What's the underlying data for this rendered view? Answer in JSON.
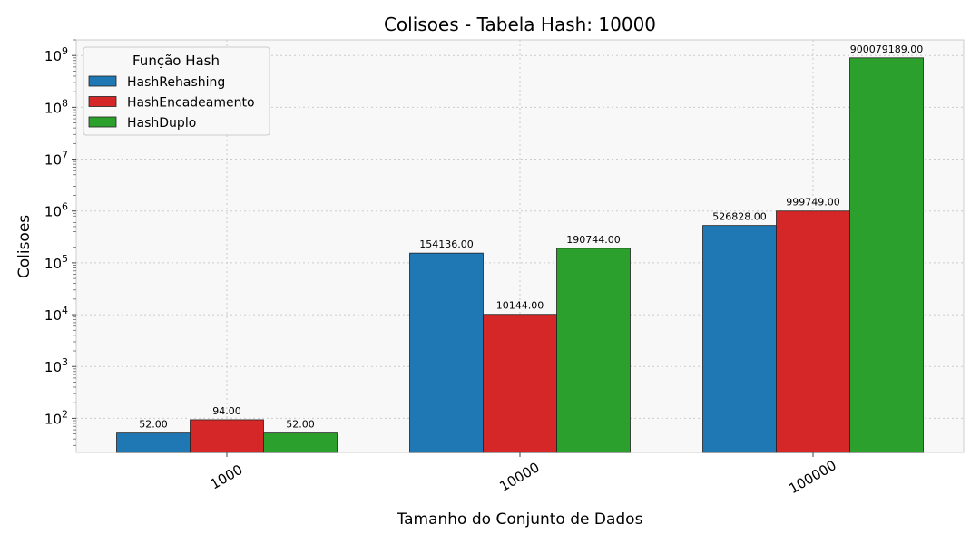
{
  "chart_data": {
    "type": "bar",
    "title": "Colisoes - Tabela Hash: 10000",
    "xlabel": "Tamanho do Conjunto de Dados",
    "ylabel": "Colisoes",
    "yscale": "log",
    "ylim": [
      22,
      2000000000
    ],
    "grid": true,
    "legend_title": "Função Hash",
    "legend_position": "top-left",
    "categories": [
      "1000",
      "10000",
      "100000"
    ],
    "series": [
      {
        "name": "HashRehashing",
        "color": "#1f77b4",
        "values": [
          52,
          154136,
          526828
        ],
        "labels": [
          "52.00",
          "154136.00",
          "526828.00"
        ]
      },
      {
        "name": "HashEncadeamento",
        "color": "#d62728",
        "values": [
          94,
          10144,
          999749
        ],
        "labels": [
          "94.00",
          "10144.00",
          "999749.00"
        ]
      },
      {
        "name": "HashDuplo",
        "color": "#2ca02c",
        "values": [
          52,
          190744,
          900079189
        ],
        "labels": [
          "52.00",
          "190744.00",
          "900079189.00"
        ]
      }
    ],
    "y_major_ticks": [
      2,
      3,
      4,
      5,
      6,
      7,
      8,
      9
    ]
  }
}
